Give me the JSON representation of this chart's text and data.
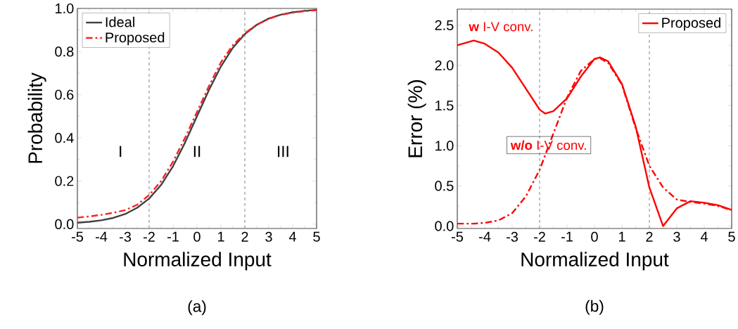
{
  "chart_data": [
    {
      "type": "line",
      "xlabel": "Normalized Input",
      "ylabel": "Probability",
      "xlim": [
        -5,
        5
      ],
      "xticks": [
        -5,
        -4,
        -3,
        -2,
        -1,
        0,
        1,
        2,
        3,
        4,
        5
      ],
      "ylim": [
        -0.02,
        1.0
      ],
      "yticks": [
        {
          "value": 0,
          "label": "0.0"
        },
        0.2,
        0.4,
        0.6,
        0.8,
        {
          "value": 1,
          "label": "1.0"
        }
      ],
      "x": [
        -5,
        -4.5,
        -4,
        -3.5,
        -3,
        -2.5,
        -2,
        -1.5,
        -1,
        -0.5,
        0,
        0.5,
        1,
        1.5,
        2,
        2.5,
        3,
        3.5,
        4,
        4.5,
        5
      ],
      "series": [
        {
          "name": "Ideal",
          "color": "#404040",
          "line_style": "solid",
          "values": [
            0.007,
            0.011,
            0.018,
            0.029,
            0.047,
            0.076,
            0.119,
            0.182,
            0.269,
            0.378,
            0.5,
            0.622,
            0.731,
            0.818,
            0.881,
            0.924,
            0.953,
            0.971,
            0.982,
            0.989,
            0.993
          ]
        },
        {
          "name": "Proposed",
          "color": "#ff2020",
          "line_style": "dashdot",
          "values": [
            0.03,
            0.036,
            0.043,
            0.053,
            0.065,
            0.09,
            0.135,
            0.2,
            0.29,
            0.4,
            0.52,
            0.64,
            0.75,
            0.83,
            0.885,
            0.925,
            0.952,
            0.97,
            0.98,
            0.987,
            0.992
          ]
        }
      ],
      "ref_lines": [
        {
          "axis": "x",
          "value": -2,
          "color": "#999999",
          "line_style": "dashed"
        },
        {
          "axis": "x",
          "value": 2,
          "color": "#999999",
          "line_style": "dashed"
        }
      ],
      "annotations": [
        "I",
        "II",
        "III",
        "(a)"
      ],
      "legend": "top left",
      "grid": false,
      "marker": "none"
    },
    {
      "type": "line",
      "xlabel": "Normalized Input",
      "ylabel": "Error (%)",
      "xlim": [
        -5,
        5
      ],
      "xticks": [
        -5,
        -4,
        -3,
        -2,
        -1,
        0,
        1,
        2,
        3,
        4,
        5
      ],
      "ylim": [
        -0.03,
        2.7
      ],
      "yticks": [
        {
          "value": 0,
          "label": "0.0"
        },
        0.5,
        {
          "value": 1,
          "label": "1.0"
        },
        1.5,
        {
          "value": 2,
          "label": "2.0"
        },
        2.5
      ],
      "x": [
        -5,
        -4.4,
        -4,
        -3.5,
        -3,
        -2.5,
        -2,
        -1.8,
        -1.5,
        -1,
        -0.5,
        0,
        0.2,
        0.5,
        1,
        1.5,
        2,
        2.5,
        3,
        3.5,
        4,
        4.5,
        5
      ],
      "series": [
        {
          "name": "Proposed",
          "color": "#ff0000",
          "line_style": "solid",
          "values": [
            2.25,
            2.31,
            2.27,
            2.16,
            1.97,
            1.71,
            1.45,
            1.4,
            1.43,
            1.59,
            1.86,
            2.08,
            2.1,
            2.05,
            1.77,
            1.24,
            0.48,
            0.0,
            0.22,
            0.31,
            0.29,
            0.26,
            0.2
          ]
        },
        {
          "color": "#ff0000",
          "line_style": "dashdot",
          "values": [
            0.03,
            0.03,
            0.04,
            0.07,
            0.16,
            0.37,
            0.7,
            0.88,
            1.15,
            1.6,
            1.93,
            2.08,
            2.09,
            2.03,
            1.76,
            1.22,
            0.75,
            0.48,
            0.33,
            0.3,
            0.28,
            0.25,
            0.2
          ]
        }
      ],
      "ref_lines": [
        {
          "axis": "x",
          "value": -2,
          "color": "#999999",
          "line_style": "dashed"
        },
        {
          "axis": "x",
          "value": 2,
          "color": "#999999",
          "line_style": "dashed"
        }
      ],
      "annotations": [
        "**w** I-V conv.",
        "**w/o** I-V conv.",
        "(b)"
      ],
      "legend": "top right",
      "grid": false,
      "marker": "none"
    }
  ]
}
